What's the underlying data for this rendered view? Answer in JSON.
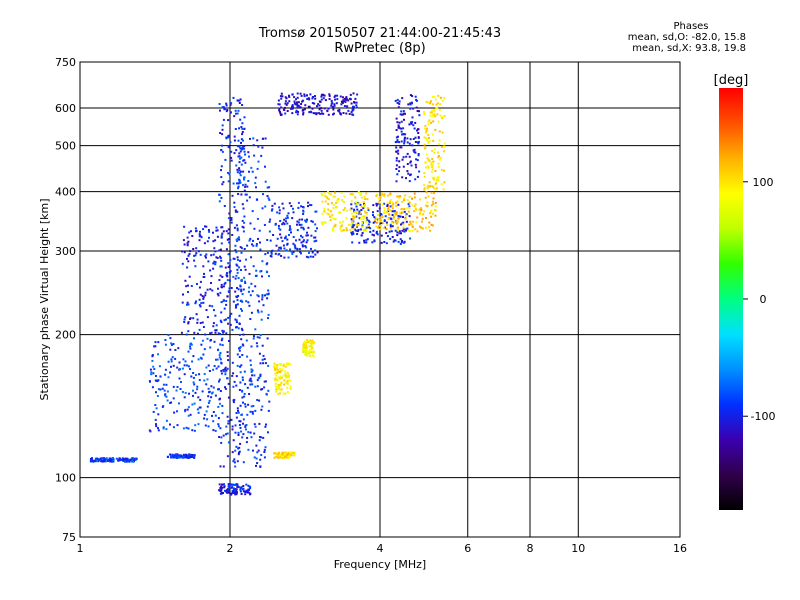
{
  "title": {
    "line1": "Tromsø 20150507 21:44:00-21:45:43",
    "line2": "RwPretec (8p)"
  },
  "stats": {
    "heading": "Phases",
    "line_o": "mean, sd,O: -82.0, 15.8",
    "line_x": "mean, sd,X:  93.8, 19.8"
  },
  "chart_data": {
    "type": "scatter",
    "xlabel": "Frequency [MHz]",
    "ylabel": "Stationary phase Virtual Height [km]",
    "x_scale": "log",
    "y_scale": "log",
    "xlim": [
      1,
      16
    ],
    "ylim": [
      75,
      750
    ],
    "x_ticks": [
      1,
      2,
      4,
      6,
      8,
      10,
      16
    ],
    "y_ticks": [
      75,
      100,
      200,
      300,
      400,
      500,
      600,
      750
    ],
    "grid": true,
    "colorbar": {
      "label": "[deg]",
      "ticks": [
        100,
        0,
        -100
      ],
      "range": [
        -180,
        180
      ],
      "colormap": [
        "#000000",
        "#30004a",
        "#3a00b0",
        "#0030ff",
        "#0090ff",
        "#00e0ff",
        "#00ff80",
        "#30ff00",
        "#c0ff00",
        "#ffff00",
        "#ffb000",
        "#ff5000",
        "#ff0000"
      ]
    },
    "series": [
      {
        "x": [
          1.5,
          1.7,
          2.0
        ],
        "y": [
          110,
          112,
          114
        ],
        "phase": -95
      },
      {
        "x": [
          1.05,
          1.3
        ],
        "y": [
          108,
          110
        ],
        "phase": -90
      },
      {
        "x": [
          1.38,
          1.95
        ],
        "y": [
          125,
          200
        ],
        "phase": -85
      },
      {
        "x": [
          1.6,
          2.0
        ],
        "y": [
          200,
          340
        ],
        "phase": -100
      },
      {
        "x": [
          1.9,
          2.15
        ],
        "y": [
          105,
          640
        ],
        "phase": -95
      },
      {
        "x": [
          2.05,
          2.4
        ],
        "y": [
          105,
          520
        ],
        "phase": -90
      },
      {
        "x": [
          2.4,
          3.0
        ],
        "y": [
          290,
          380
        ],
        "phase": -95
      },
      {
        "x": [
          2.5,
          3.6
        ],
        "y": [
          580,
          645
        ],
        "phase": -110
      },
      {
        "x": [
          3.5,
          4.6
        ],
        "y": [
          310,
          380
        ],
        "phase": -100
      },
      {
        "x": [
          4.3,
          4.8
        ],
        "y": [
          420,
          640
        ],
        "phase": -105
      },
      {
        "x": [
          1.9,
          2.2
        ],
        "y": [
          92,
          97
        ],
        "phase": -100
      },
      {
        "x": [
          3.05,
          3.8
        ],
        "y": [
          330,
          400
        ],
        "phase": 95
      },
      {
        "x": [
          3.9,
          5.2
        ],
        "y": [
          330,
          400
        ],
        "phase": 110
      },
      {
        "x": [
          4.9,
          5.4
        ],
        "y": [
          400,
          640
        ],
        "phase": 100
      },
      {
        "x": [
          2.45,
          2.65
        ],
        "y": [
          150,
          175
        ],
        "phase": 95
      },
      {
        "x": [
          2.45,
          2.7
        ],
        "y": [
          110,
          113
        ],
        "phase": 100
      },
      {
        "x": [
          2.8,
          2.95
        ],
        "y": [
          180,
          195
        ],
        "phase": 90
      }
    ]
  }
}
